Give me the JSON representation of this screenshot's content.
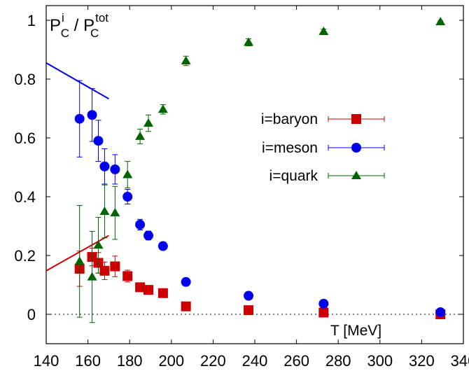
{
  "chart_data": {
    "type": "scatter",
    "title": "",
    "xlabel": "T [MeV]",
    "ylabel_parts": {
      "base": "P",
      "sub": "C",
      "sup_num": "i",
      "sep": " / ",
      "sup_den": "tot"
    },
    "xlim": [
      140,
      340
    ],
    "ylim": [
      -0.1,
      1.05
    ],
    "xticks": [
      140,
      160,
      180,
      200,
      220,
      240,
      260,
      280,
      300,
      320,
      340
    ],
    "yticks": [
      0,
      0.2,
      0.4,
      0.6,
      0.8,
      1
    ],
    "ytick_labels": [
      "0",
      "0.2",
      "0.4",
      "0.6",
      "0.8",
      "1"
    ],
    "grid": false,
    "legend_position": "center-right",
    "reference_line": {
      "y": 0,
      "style": "dotted"
    },
    "series": [
      {
        "name": "i=baryon",
        "marker": "square",
        "color": "#cc0000",
        "points": [
          {
            "x": 156,
            "y": 0.155,
            "err": 0.06
          },
          {
            "x": 162,
            "y": 0.195,
            "err": 0.03
          },
          {
            "x": 165,
            "y": 0.175,
            "err": 0.035
          },
          {
            "x": 168,
            "y": 0.148,
            "err": 0.03
          },
          {
            "x": 173,
            "y": 0.163,
            "err": 0.035
          },
          {
            "x": 179,
            "y": 0.13,
            "err": 0.02
          },
          {
            "x": 185,
            "y": 0.092,
            "err": 0.012
          },
          {
            "x": 189,
            "y": 0.083,
            "err": 0.01
          },
          {
            "x": 196,
            "y": 0.072,
            "err": 0.01
          },
          {
            "x": 207,
            "y": 0.027,
            "err": 0.004
          },
          {
            "x": 237,
            "y": 0.014,
            "err": 0.003
          },
          {
            "x": 273,
            "y": 0.006,
            "err": 0.002
          },
          {
            "x": 329,
            "y": 0.0,
            "err": 0.001
          }
        ]
      },
      {
        "name": "i=meson",
        "marker": "circle",
        "color": "#0000ee",
        "points": [
          {
            "x": 156,
            "y": 0.665,
            "err": 0.13
          },
          {
            "x": 162,
            "y": 0.678,
            "err": 0.09
          },
          {
            "x": 165,
            "y": 0.59,
            "err": 0.07
          },
          {
            "x": 168,
            "y": 0.503,
            "err": 0.06
          },
          {
            "x": 173,
            "y": 0.493,
            "err": 0.05
          },
          {
            "x": 179,
            "y": 0.4,
            "err": 0.025
          },
          {
            "x": 185,
            "y": 0.305,
            "err": 0.018
          },
          {
            "x": 189,
            "y": 0.268,
            "err": 0.015
          },
          {
            "x": 196,
            "y": 0.232,
            "err": 0.01
          },
          {
            "x": 207,
            "y": 0.11,
            "err": 0.006
          },
          {
            "x": 237,
            "y": 0.063,
            "err": 0.004
          },
          {
            "x": 273,
            "y": 0.036,
            "err": 0.003
          },
          {
            "x": 329,
            "y": 0.007,
            "err": 0.002
          }
        ]
      },
      {
        "name": "i=quark",
        "marker": "triangle",
        "color": "#006400",
        "points": [
          {
            "x": 156,
            "y": 0.18,
            "err": 0.19
          },
          {
            "x": 162,
            "y": 0.127,
            "err": 0.155
          },
          {
            "x": 165,
            "y": 0.235,
            "err": 0.095
          },
          {
            "x": 168,
            "y": 0.35,
            "err": 0.09
          },
          {
            "x": 173,
            "y": 0.345,
            "err": 0.09
          },
          {
            "x": 179,
            "y": 0.475,
            "err": 0.045
          },
          {
            "x": 185,
            "y": 0.605,
            "err": 0.025
          },
          {
            "x": 189,
            "y": 0.65,
            "err": 0.028
          },
          {
            "x": 196,
            "y": 0.697,
            "err": 0.016
          },
          {
            "x": 207,
            "y": 0.862,
            "err": 0.016
          },
          {
            "x": 237,
            "y": 0.925,
            "err": 0.012
          },
          {
            "x": 273,
            "y": 0.962,
            "err": 0.008
          },
          {
            "x": 329,
            "y": 0.995,
            "err": 0.003
          }
        ]
      }
    ],
    "lines": [
      {
        "name": "meson-reference",
        "color": "#0000ee",
        "x": [
          140,
          170
        ],
        "y": [
          0.855,
          0.733
        ]
      },
      {
        "name": "baryon-reference",
        "color": "#cc0000",
        "x": [
          140,
          170
        ],
        "y": [
          0.148,
          0.268
        ]
      }
    ]
  }
}
